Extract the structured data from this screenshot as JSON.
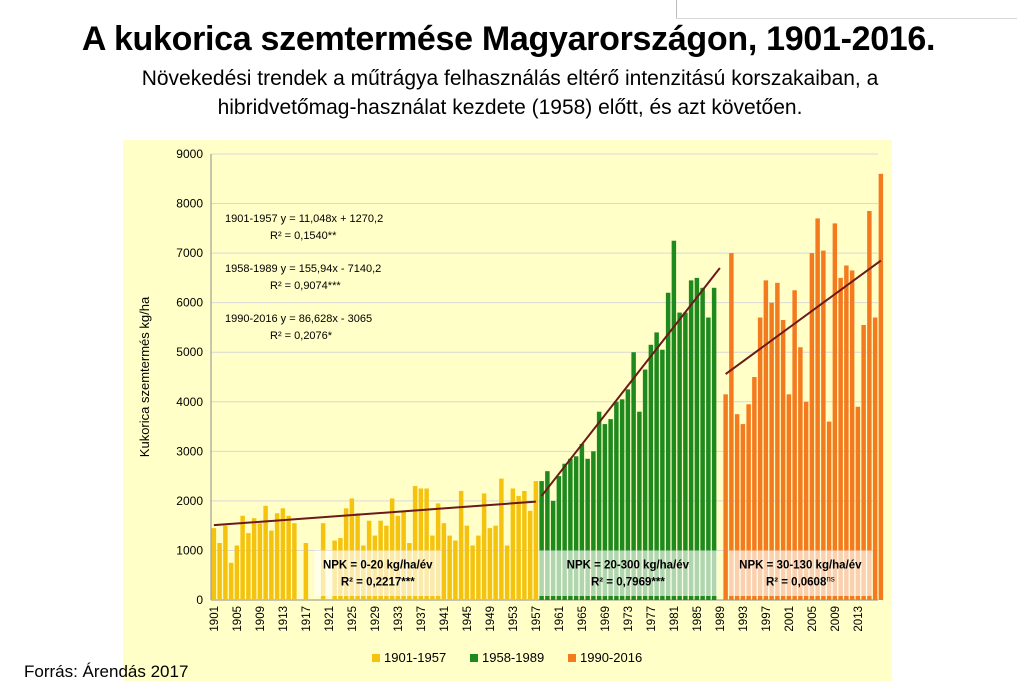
{
  "header": {
    "title": "A kukorica szemtermése Magyarországon, 1901-2016.",
    "subtitle_line1": "Növekedési trendek a műtrágya felhasználás eltérő intenzitású korszakaiban, a",
    "subtitle_line2": "hibridvetőmag-használat kezdete (1958) előtt, és azt követően."
  },
  "footer": {
    "source": "Forrás: Árendás 2017"
  },
  "chart_data": {
    "type": "bar",
    "title": "",
    "ylabel": "Kukorica szemtermés kg/ha",
    "xlabel": "",
    "ylim": [
      0,
      9000
    ],
    "yticks": [
      0,
      1000,
      2000,
      3000,
      4000,
      5000,
      6000,
      7000,
      8000,
      9000
    ],
    "grid": true,
    "legend_position": "bottom",
    "x_tick_labels": [
      "1901",
      "1905",
      "1909",
      "1913",
      "1917",
      "1921",
      "1925",
      "1929",
      "1933",
      "1937",
      "1941",
      "1945",
      "1949",
      "1953",
      "1957",
      "1961",
      "1965",
      "1969",
      "1973",
      "1977",
      "1981",
      "1985",
      "1989",
      "1993",
      "1997",
      "2001",
      "2005",
      "2009",
      "2013"
    ],
    "colors": {
      "background": "#ffffc7",
      "s1": "#f5c20f",
      "s2": "#1e8a1e",
      "s3": "#f47a1f",
      "trend": "#6b1a1a",
      "grid": "#d9d9d9"
    },
    "series": [
      {
        "name": "1901-1957",
        "start_year": 1901,
        "color": "#f5c20f",
        "values": [
          1450,
          1150,
          1500,
          750,
          1100,
          1700,
          1350,
          1650,
          1550,
          1900,
          1400,
          1750,
          1850,
          1700,
          1550,
          0,
          1150,
          0,
          0,
          1550,
          0,
          1200,
          1250,
          1850,
          2050,
          1750,
          1100,
          1600,
          1300,
          1600,
          1500,
          2050,
          1700,
          1800,
          1150,
          2300,
          2250,
          2250,
          1300,
          1950,
          1550,
          1300,
          1200,
          2200,
          1500,
          1100,
          1300,
          2150,
          1450,
          1500,
          2450,
          1100,
          2250,
          2100,
          2200,
          1800,
          2400
        ]
      },
      {
        "name": "1958-1989",
        "start_year": 1958,
        "color": "#1e8a1e",
        "values": [
          2400,
          2600,
          2000,
          2500,
          2750,
          2850,
          2900,
          3150,
          2850,
          3000,
          3800,
          3550,
          3650,
          4000,
          4050,
          4250,
          5000,
          3800,
          4650,
          5150,
          5400,
          5050,
          6200,
          7250,
          5800,
          5800,
          6450,
          6500,
          6300,
          5700,
          6300,
          0
        ]
      },
      {
        "name": "1990-2016",
        "start_year": 1990,
        "color": "#f47a1f",
        "values": [
          4150,
          7000,
          3750,
          3550,
          3950,
          4500,
          5700,
          6450,
          6000,
          6400,
          5650,
          4150,
          6250,
          5100,
          4000,
          7000,
          7700,
          7050,
          3600,
          7600,
          6500,
          6750,
          6650,
          3900,
          5550,
          7850,
          5700,
          8600
        ]
      }
    ],
    "trendlines": [
      {
        "period": "1901-1957",
        "equation": "1901-1957  y = 11,048x + 1270,2",
        "r2": "R² = 0,1540**",
        "from": [
          1901,
          1510
        ],
        "to": [
          1957,
          1985
        ]
      },
      {
        "period": "1958-1989",
        "equation": "1958-1989  y = 155,94x - 7140,2",
        "r2": "R² = 0,9074***",
        "from": [
          1958,
          2100
        ],
        "to": [
          1989,
          6700
        ]
      },
      {
        "period": "1990-2016",
        "equation": "1990-2016  y = 86,628x - 3065",
        "r2": "R² = 0,2076*",
        "from": [
          1990,
          4560
        ],
        "to": [
          2017,
          6850
        ]
      }
    ],
    "boxes": [
      {
        "line1": "NPK = 0-20 kg/ha/év",
        "line2": "R² = 0,2217***",
        "start_year": 1919,
        "end_year": 1940
      },
      {
        "line1": "NPK = 20-300 kg/ha/év",
        "line2": "R² = 0,7969***",
        "start_year": 1958,
        "end_year": 1988
      },
      {
        "line1": "NPK = 30-130 kg/ha/év",
        "line2": "R² = 0,0608",
        "line2_sup": "ns",
        "start_year": 1991,
        "end_year": 2015
      }
    ]
  }
}
